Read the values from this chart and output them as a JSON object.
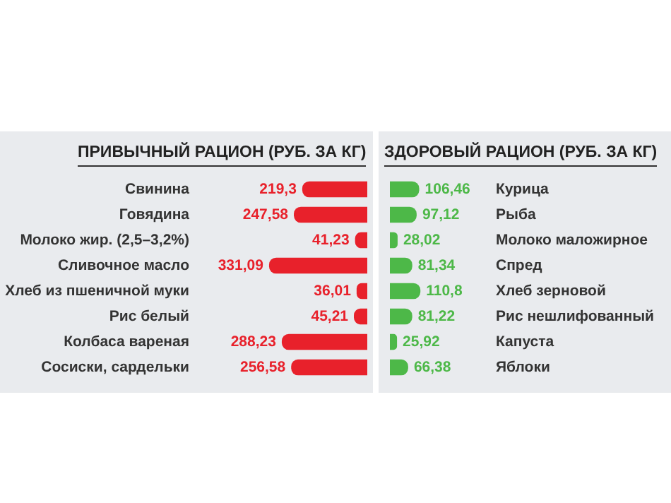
{
  "chart_data": [
    {
      "type": "bar",
      "orientation": "horizontal",
      "title": "ПРИВЫЧНЫЙ РАЦИОН (РУБ. ЗА КГ)",
      "categories": [
        "Свинина",
        "Говядина",
        "Молоко жир. (2,5–3,2%)",
        "Сливочное масло",
        "Хлеб из пшеничной муки",
        "Рис белый",
        "Колбаса вареная",
        "Сосиски, сардельки"
      ],
      "values": [
        219.3,
        247.58,
        41.23,
        331.09,
        36.01,
        45.21,
        288.23,
        256.58
      ],
      "value_labels": [
        "219,3",
        "247,58",
        "41,23",
        "331,09",
        "36,01",
        "45,21",
        "288,23",
        "256,58"
      ],
      "color": "#e8212b"
    },
    {
      "type": "bar",
      "orientation": "horizontal",
      "title": "ЗДОРОВЫЙ РАЦИОН (РУБ. ЗА КГ)",
      "categories": [
        "Курица",
        "Рыба",
        "Молоко маложирное",
        "Спред",
        "Хлеб зерновой",
        "Рис нешлифованный",
        "Капуста",
        "Яблоки"
      ],
      "values": [
        106.46,
        97.12,
        28.02,
        81.34,
        110.8,
        81.22,
        25.92,
        66.38
      ],
      "value_labels": [
        "106,46",
        "97,12",
        "28,02",
        "81,34",
        "110,8",
        "81,22",
        "25,92",
        "66,38"
      ],
      "color": "#4db848"
    }
  ]
}
